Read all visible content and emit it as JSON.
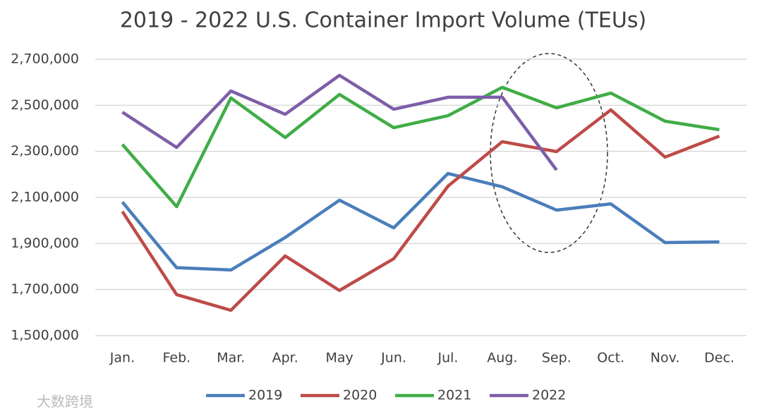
{
  "chart_data": {
    "type": "line",
    "title": "2019 - 2022 U.S. Container Import Volume (TEUs)",
    "categories": [
      "Jan.",
      "Feb.",
      "Mar.",
      "Apr.",
      "May",
      "Jun.",
      "Jul.",
      "Aug.",
      "Sep.",
      "Oct.",
      "Nov.",
      "Dec."
    ],
    "series": [
      {
        "name": "2019",
        "color": "#4a7ebb",
        "values": [
          2080000,
          1795000,
          1785000,
          1926000,
          2088000,
          1968000,
          2204000,
          2146000,
          2045000,
          2072000,
          1904000,
          1907000
        ]
      },
      {
        "name": "2020",
        "color": "#be4b48",
        "values": [
          2039000,
          1678000,
          1610000,
          1846000,
          1696000,
          1834000,
          2149000,
          2342000,
          2299000,
          2480000,
          2275000,
          2366000
        ]
      },
      {
        "name": "2021",
        "color": "#3fad46",
        "values": [
          2330000,
          2060000,
          2532000,
          2360000,
          2547000,
          2403000,
          2455000,
          2578000,
          2489000,
          2553000,
          2431000,
          2394000
        ]
      },
      {
        "name": "2022",
        "color": "#7d5ea8",
        "values": [
          2470000,
          2317000,
          2562000,
          2461000,
          2630000,
          2483000,
          2535000,
          2535000,
          2219000,
          null,
          null,
          null
        ]
      }
    ],
    "ylim": [
      1500000,
      2700000
    ],
    "yticks": [
      {
        "value": 1500000,
        "label": "1,500,000"
      },
      {
        "value": 1700000,
        "label": "1,700,000"
      },
      {
        "value": 1900000,
        "label": "1,900,000"
      },
      {
        "value": 2100000,
        "label": "2,100,000"
      },
      {
        "value": 2300000,
        "label": "2,300,000"
      },
      {
        "value": 2500000,
        "label": "2,500,000"
      },
      {
        "value": 2700000,
        "label": "2,700,000"
      }
    ],
    "grid": true,
    "legend": "bottom",
    "watermark": "大数跨境"
  }
}
